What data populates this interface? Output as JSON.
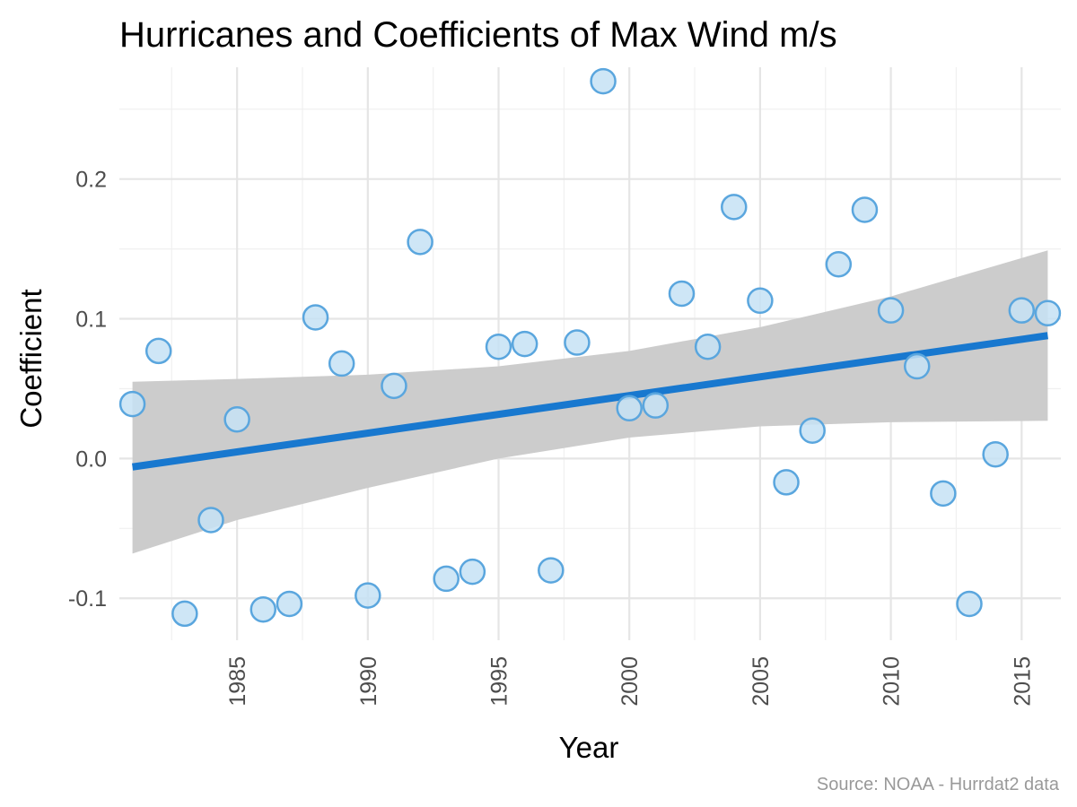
{
  "chart_data": {
    "type": "scatter",
    "title": "Hurricanes and Coefficients of Max Wind m/s",
    "xlabel": "Year",
    "ylabel": "Coefficient",
    "caption": "Source: NOAA - Hurrdat2 data",
    "xlim": [
      1980.5,
      2016.5
    ],
    "ylim": [
      -0.13,
      0.28
    ],
    "x_ticks": [
      1985,
      1990,
      1995,
      2000,
      2005,
      2010,
      2015
    ],
    "x_tick_labels": [
      "1985",
      "1990",
      "1995",
      "2000",
      "2005",
      "2010",
      "2015"
    ],
    "y_ticks": [
      -0.1,
      0.0,
      0.1,
      0.2
    ],
    "y_tick_labels": [
      "-0.1",
      "0.0",
      "0.1",
      "0.2"
    ],
    "grid": true,
    "point_fill": "#c6e2f5",
    "point_stroke": "#5aa6de",
    "points": [
      {
        "x": 1981,
        "y": 0.039
      },
      {
        "x": 1982,
        "y": 0.077
      },
      {
        "x": 1983,
        "y": -0.111
      },
      {
        "x": 1984,
        "y": -0.044
      },
      {
        "x": 1985,
        "y": 0.028
      },
      {
        "x": 1986,
        "y": -0.108
      },
      {
        "x": 1987,
        "y": -0.104
      },
      {
        "x": 1988,
        "y": 0.101
      },
      {
        "x": 1989,
        "y": 0.068
      },
      {
        "x": 1990,
        "y": -0.098
      },
      {
        "x": 1991,
        "y": 0.052
      },
      {
        "x": 1992,
        "y": 0.155
      },
      {
        "x": 1993,
        "y": -0.086
      },
      {
        "x": 1994,
        "y": -0.081
      },
      {
        "x": 1995,
        "y": 0.08
      },
      {
        "x": 1996,
        "y": 0.082
      },
      {
        "x": 1997,
        "y": -0.08
      },
      {
        "x": 1998,
        "y": 0.083
      },
      {
        "x": 1999,
        "y": 0.27
      },
      {
        "x": 2000,
        "y": 0.036
      },
      {
        "x": 2001,
        "y": 0.038
      },
      {
        "x": 2002,
        "y": 0.118
      },
      {
        "x": 2003,
        "y": 0.08
      },
      {
        "x": 2004,
        "y": 0.18
      },
      {
        "x": 2005,
        "y": 0.113
      },
      {
        "x": 2006,
        "y": -0.017
      },
      {
        "x": 2007,
        "y": 0.02
      },
      {
        "x": 2008,
        "y": 0.139
      },
      {
        "x": 2009,
        "y": 0.178
      },
      {
        "x": 2010,
        "y": 0.106
      },
      {
        "x": 2011,
        "y": 0.066
      },
      {
        "x": 2012,
        "y": -0.025
      },
      {
        "x": 2013,
        "y": -0.104
      },
      {
        "x": 2014,
        "y": 0.003
      },
      {
        "x": 2015,
        "y": 0.106
      },
      {
        "x": 2016,
        "y": 0.104
      }
    ],
    "trend": {
      "type": "linear",
      "color": "#1878cf",
      "x": [
        1981,
        2016
      ],
      "y": [
        -0.006,
        0.088
      ]
    },
    "confidence_band": {
      "color": "#cccccc",
      "x": [
        1981,
        1985,
        1990,
        1995,
        2000,
        2005,
        2010,
        2016
      ],
      "upper": [
        0.055,
        0.057,
        0.06,
        0.066,
        0.077,
        0.094,
        0.116,
        0.149
      ],
      "lower": [
        -0.068,
        -0.044,
        -0.021,
        0.0,
        0.015,
        0.023,
        0.026,
        0.027
      ]
    }
  }
}
